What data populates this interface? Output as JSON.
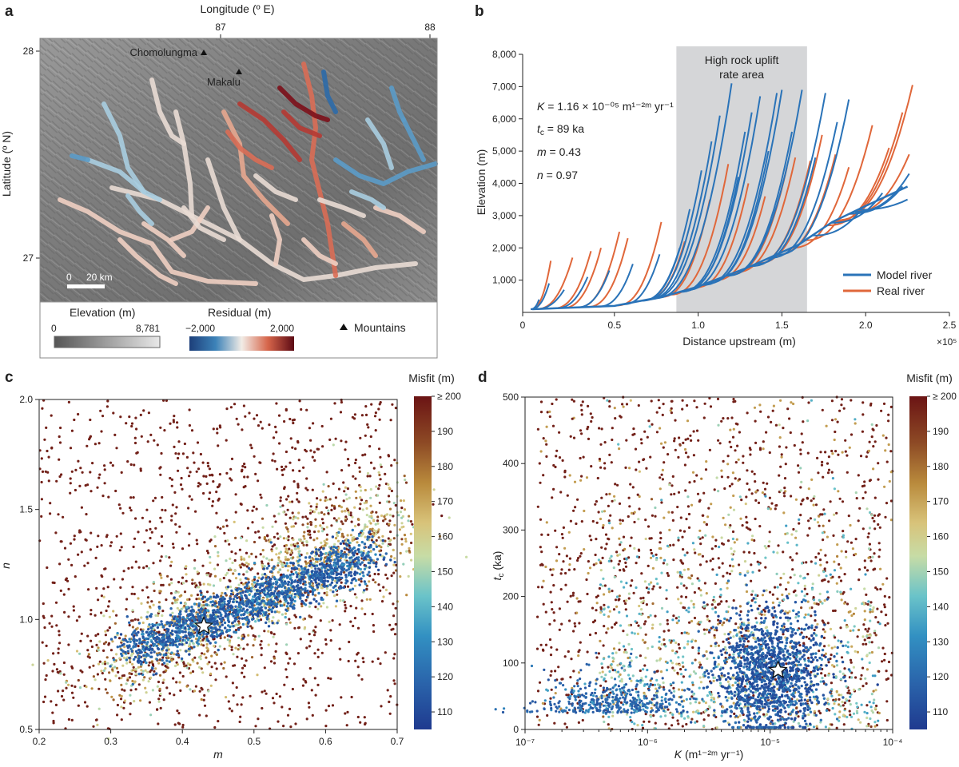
{
  "panels": {
    "a": "a",
    "b": "b",
    "c": "c",
    "d": "d"
  },
  "map": {
    "x_title": "Longitude (º E)",
    "y_title": "Latitude (º N)",
    "lon_ticks": [
      "87",
      "88"
    ],
    "lat_ticks": [
      "28",
      "27"
    ],
    "peaks": [
      {
        "name": "Chomolungma",
        "lon": 86.93,
        "lat": 27.99
      },
      {
        "name": "Makalu",
        "lon": 87.09,
        "lat": 27.89
      }
    ],
    "scale_label_0": "0",
    "scale_label": "20 km",
    "legend": {
      "elev_title": "Elevation (m)",
      "elev_min": "0",
      "elev_max": "8,781",
      "resid_title": "Residual (m)",
      "resid_min": "−2,000",
      "resid_max": "2,000",
      "mountains": "Mountains"
    },
    "colors": {
      "resid_low": "#2b5d9c",
      "resid_mid": "#f3e7df",
      "resid_high": "#6e0f17",
      "elev_low": "#5a5a5a",
      "elev_high": "#e6e6e6"
    }
  },
  "chart_data": [
    {
      "panel": "b",
      "type": "line",
      "xlabel": "Distance upstream (m)",
      "ylabel": "Elevation (m)",
      "x_multiplier": "×10⁵",
      "xlim": [
        0,
        250000
      ],
      "ylim": [
        0,
        8000
      ],
      "x_tick_labels": [
        "0",
        "0.5",
        "1.0",
        "1.5",
        "2.0",
        "2.5"
      ],
      "y_tick_labels": [
        "1,000",
        "2,000",
        "3,000",
        "4,000",
        "5,000",
        "6,000",
        "7,000",
        "8,000"
      ],
      "shaded_region": {
        "x": [
          87000,
          165000
        ],
        "label_line1": "High rock uplift",
        "label_line2": "rate area"
      },
      "params": [
        {
          "sym": "K",
          "text": " = 1.16 × 10⁻⁰⁵ m¹⁻²ᵐ yr⁻¹"
        },
        {
          "sym": "t",
          "sub": "c",
          "text": " = 89 ka"
        },
        {
          "sym": "m",
          "text": " = 0.43"
        },
        {
          "sym": "n",
          "text": " = 0.97"
        }
      ],
      "series": [
        {
          "name": "Model river",
          "color": "#2a73b8"
        },
        {
          "name": "Real river",
          "color": "#e0673a"
        }
      ],
      "trunk": [
        [
          1000,
          100
        ],
        [
          50000,
          200
        ],
        [
          80000,
          500
        ],
        [
          100000,
          800
        ],
        [
          130000,
          1400
        ],
        [
          160000,
          2100
        ],
        [
          180000,
          2800
        ],
        [
          200000,
          3300
        ],
        [
          225000,
          3900
        ]
      ],
      "model_tips": [
        [
          5000,
          400
        ],
        [
          11000,
          900
        ],
        [
          20000,
          700
        ],
        [
          34000,
          1100
        ],
        [
          47000,
          1300
        ],
        [
          61000,
          1500
        ],
        [
          77000,
          1800
        ],
        [
          89000,
          2000
        ],
        [
          95000,
          3200
        ],
        [
          102000,
          4400
        ],
        [
          108000,
          5300
        ],
        [
          113000,
          6100
        ],
        [
          120000,
          7100
        ],
        [
          124000,
          4200
        ],
        [
          128000,
          5600
        ],
        [
          132000,
          6200
        ],
        [
          137000,
          6700
        ],
        [
          142000,
          5000
        ],
        [
          147000,
          6800
        ],
        [
          150000,
          6900
        ],
        [
          156000,
          5600
        ],
        [
          162000,
          6900
        ],
        [
          170000,
          4800
        ],
        [
          176000,
          6800
        ],
        [
          183000,
          5900
        ],
        [
          190000,
          6600
        ],
        [
          196000,
          3100
        ],
        [
          210000,
          3700
        ],
        [
          222000,
          3900
        ],
        [
          226000,
          4300
        ],
        [
          225000,
          3500
        ]
      ],
      "real_tips": [
        [
          12000,
          1600
        ],
        [
          25000,
          1700
        ],
        [
          36000,
          1900
        ],
        [
          42000,
          2000
        ],
        [
          53000,
          2500
        ],
        [
          58000,
          2300
        ],
        [
          78000,
          2800
        ],
        [
          92000,
          2200
        ],
        [
          107000,
          3500
        ],
        [
          118000,
          4600
        ],
        [
          130000,
          4000
        ],
        [
          140000,
          3600
        ],
        [
          153000,
          4500
        ],
        [
          158000,
          4800
        ],
        [
          167000,
          4700
        ],
        [
          174000,
          5500
        ],
        [
          182000,
          4900
        ],
        [
          190000,
          4500
        ],
        [
          204000,
          5800
        ],
        [
          214000,
          5100
        ],
        [
          222000,
          6200
        ],
        [
          226000,
          4900
        ],
        [
          228000,
          7050
        ]
      ]
    },
    {
      "panel": "c",
      "type": "scatter",
      "xlabel": "m",
      "ylabel": "n",
      "xlim": [
        0.2,
        0.7
      ],
      "ylim": [
        0.5,
        2.0
      ],
      "x_tick_labels": [
        "0.2",
        "0.3",
        "0.4",
        "0.5",
        "0.6",
        "0.7"
      ],
      "y_tick_labels": [
        "0.5",
        "1.0",
        "1.5",
        "2.0"
      ],
      "best": {
        "x": 0.43,
        "y": 0.97
      },
      "colorbar": {
        "title": "Misfit (m)",
        "min": 105,
        "max": 200,
        "tick_labels": [
          "110",
          "120",
          "130",
          "140",
          "150",
          "160",
          "170",
          "180",
          "190",
          "≥ 200"
        ]
      }
    },
    {
      "panel": "d",
      "type": "scatter",
      "xlabel_main": "K",
      "xlabel_rest": " (m¹⁻²ᵐ yr⁻¹)",
      "ylabel_main": "t",
      "ylabel_sub": "c",
      "ylabel_rest": " (ka)",
      "x_scale": "log",
      "xlim": [
        1e-07,
        0.0001
      ],
      "ylim": [
        0,
        500
      ],
      "x_tick_labels": [
        "10⁻⁷",
        "10⁻⁶",
        "10⁻⁵",
        "10⁻⁴"
      ],
      "y_tick_labels": [
        "0",
        "100",
        "200",
        "300",
        "400",
        "500"
      ],
      "best": {
        "x": 1.16e-05,
        "y": 89
      },
      "colorbar": {
        "title": "Misfit (m)",
        "min": 105,
        "max": 200,
        "tick_labels": [
          "110",
          "120",
          "130",
          "140",
          "150",
          "160",
          "170",
          "180",
          "190",
          "≥ 200"
        ]
      }
    }
  ]
}
